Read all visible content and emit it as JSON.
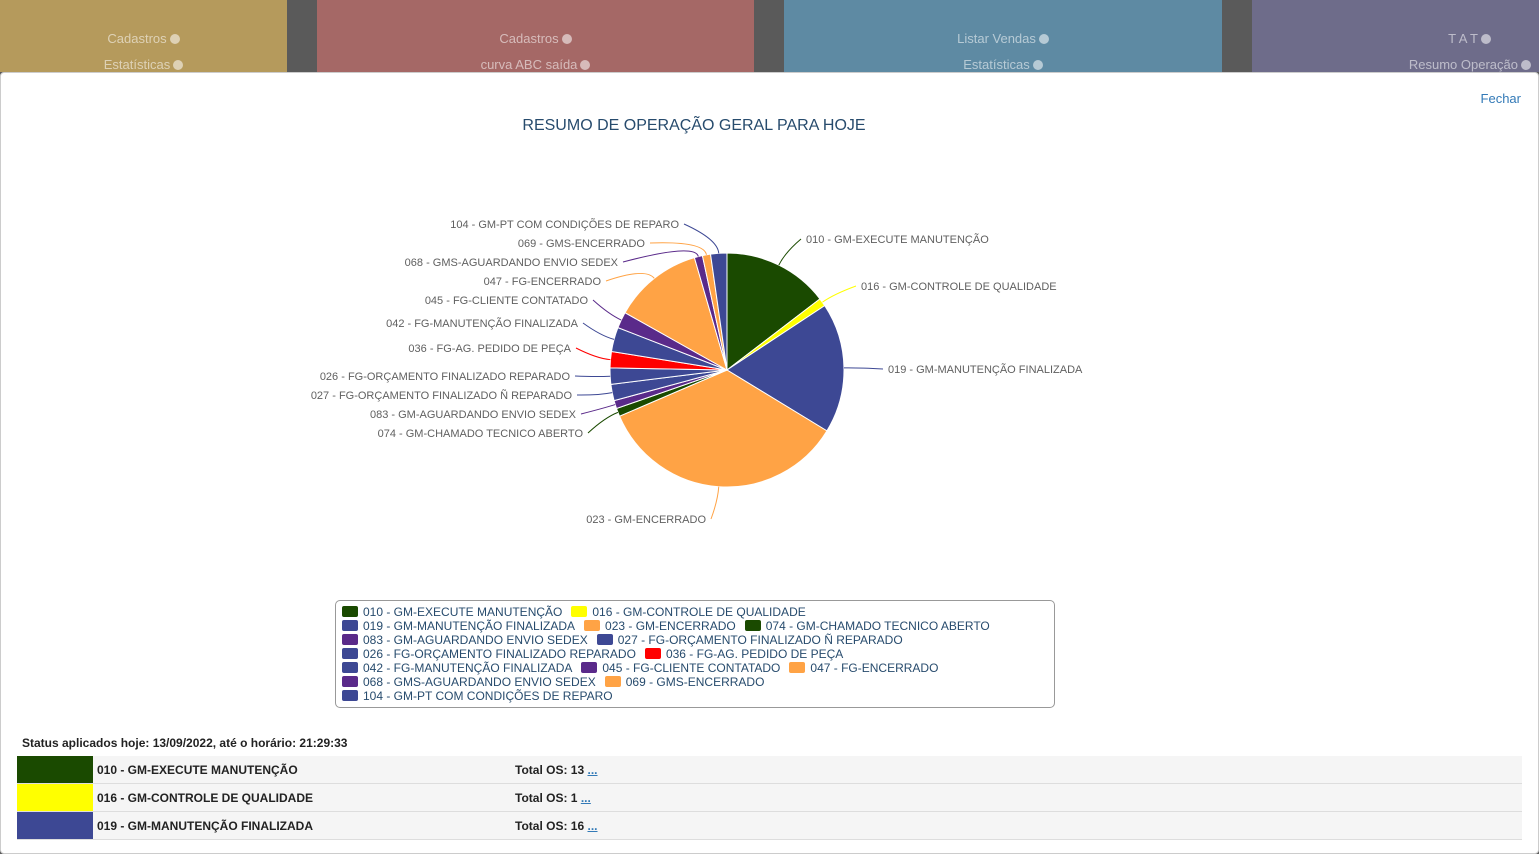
{
  "cards": [
    {
      "links": [
        "Cadastros",
        "Estatísticas"
      ]
    },
    {
      "links": [
        "Cadastros",
        "curva ABC saída"
      ]
    },
    {
      "links": [
        "Listar Vendas",
        "Estatísticas"
      ]
    },
    {
      "links": [
        "T A T",
        "Resumo Operação"
      ]
    }
  ],
  "close": "Fechar",
  "chart_data": {
    "type": "pie",
    "title": "RESUMO DE OPERAÇÃO GERAL PARA HOJE",
    "categories": [
      "010 - GM-EXECUTE MANUTENÇÃO",
      "016 - GM-CONTROLE DE QUALIDADE",
      "019 - GM-MANUTENÇÃO FINALIZADA",
      "023 - GM-ENCERRADO",
      "074 - GM-CHAMADO TECNICO ABERTO",
      "083 - GM-AGUARDANDO ENVIO SEDEX",
      "027 - FG-ORÇAMENTO FINALIZADO Ñ REPARADO",
      "026 - FG-ORÇAMENTO FINALIZADO REPARADO",
      "036 - FG-AG. PEDIDO DE PEÇA",
      "042 - FG-MANUTENÇÃO FINALIZADA",
      "045 - FG-CLIENTE CONTATADO",
      "047 - FG-ENCERRADO",
      "068 - GMS-AGUARDANDO ENVIO SEDEX",
      "069 - GMS-ENCERRADO",
      "104 - GM-PT COM CONDIÇÕES DE REPARO"
    ],
    "values": [
      13,
      1,
      16,
      31,
      1,
      1,
      2,
      2,
      2,
      3,
      2,
      11,
      1,
      1,
      2
    ],
    "colors": [
      "#1a4a00",
      "#ffff00",
      "#3d4894",
      "#ffa345",
      "#1a4a00",
      "#5a2a8a",
      "#3d4894",
      "#3d4894",
      "#ff0000",
      "#3d4894",
      "#5a2a8a",
      "#ffa345",
      "#5a2a8a",
      "#ffa345",
      "#3d4894"
    ]
  },
  "status": "Status aplicados hoje: 13/09/2022, até o horário: 21:29:33",
  "table": {
    "rows": [
      {
        "name": "010 - GM-EXECUTE MANUTENÇÃO",
        "total_label": "Total OS:",
        "total": 13,
        "more": "..."
      },
      {
        "name": "016 - GM-CONTROLE DE QUALIDADE",
        "total_label": "Total OS:",
        "total": 1,
        "more": "..."
      },
      {
        "name": "019 - GM-MANUTENÇÃO FINALIZADA",
        "total_label": "Total OS:",
        "total": 16,
        "more": "..."
      }
    ]
  }
}
